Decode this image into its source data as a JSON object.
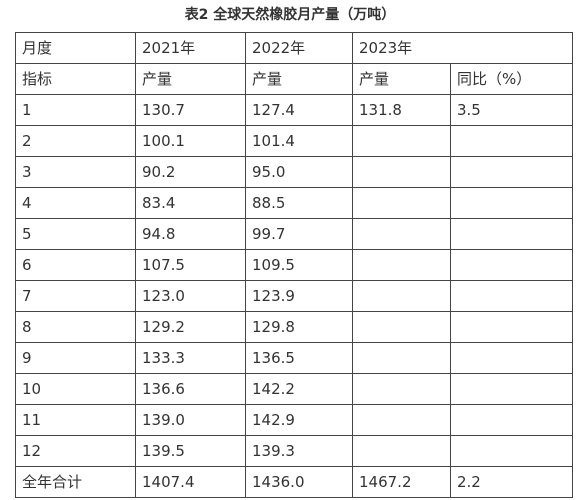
{
  "title": "表2 全球天然橡胶月产量（万吨）",
  "table": {
    "header": [
      [
        "月度",
        "2021年",
        "2022年",
        "2023年"
      ],
      [
        "指标",
        "产量",
        "产量",
        "产量",
        "同比（%）"
      ]
    ],
    "rows": [
      [
        "1",
        "130.7",
        "127.4",
        "131.8",
        "3.5"
      ],
      [
        "2",
        "100.1",
        "101.4"
      ],
      [
        "3",
        "90.2",
        "95.0"
      ],
      [
        "4",
        "83.4",
        "88.5"
      ],
      [
        "5",
        "94.8",
        "99.7"
      ],
      [
        "6",
        "107.5",
        "109.5"
      ],
      [
        "7",
        "123.0",
        "123.9"
      ],
      [
        "8",
        "129.2",
        "129.8"
      ],
      [
        "9",
        "133.3",
        "136.5"
      ],
      [
        "10",
        "136.6",
        "142.2"
      ],
      [
        "11",
        "139.0",
        "142.9"
      ],
      [
        "12",
        "139.5",
        "139.3"
      ],
      [
        "全年合计",
        "1407.4",
        "1436.0",
        "1467.2",
        "2.2"
      ]
    ]
  }
}
